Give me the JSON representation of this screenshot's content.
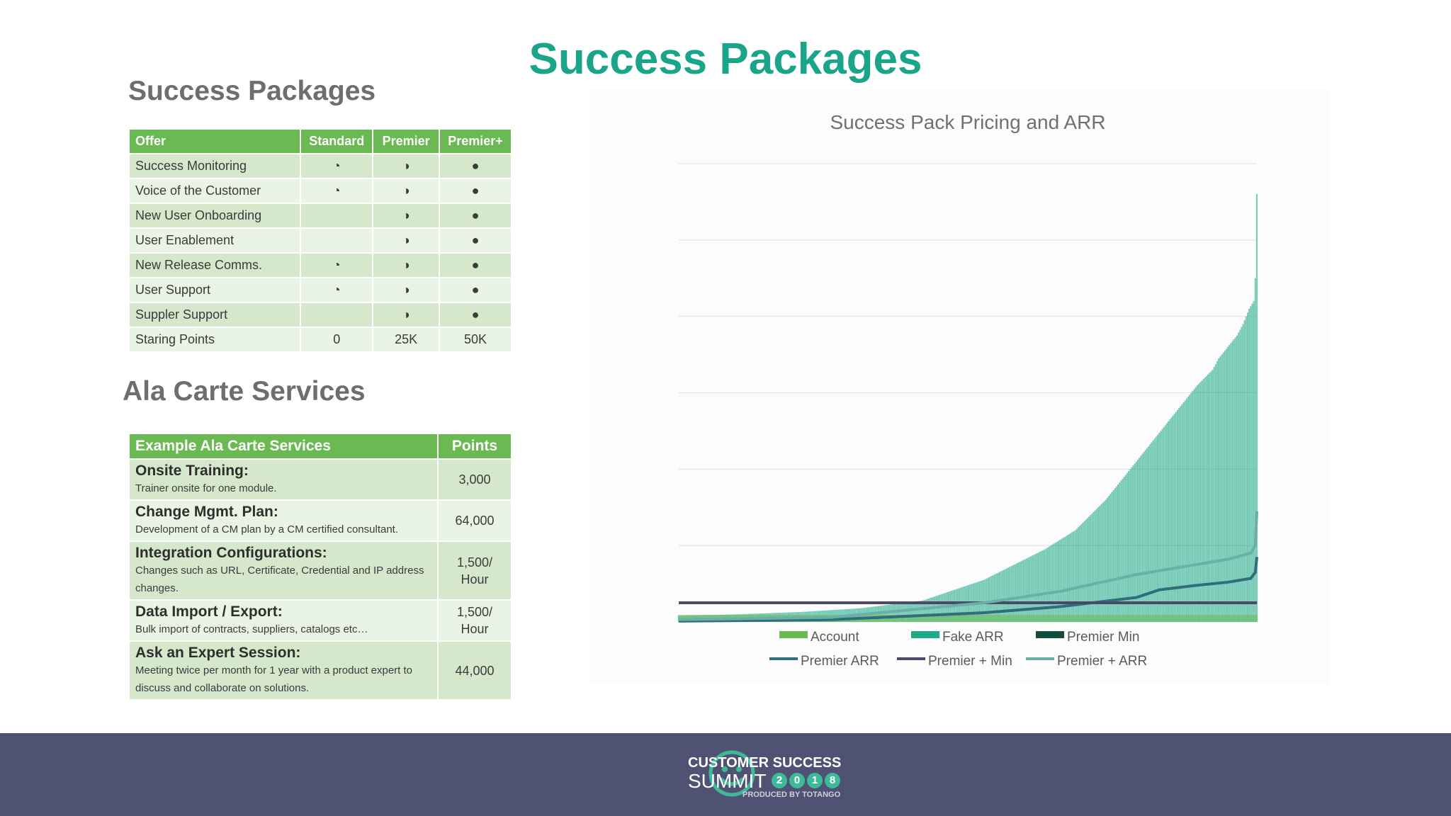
{
  "slide": {
    "title": "Success Packages"
  },
  "packages": {
    "heading": "Success Packages",
    "columns": [
      "Offer",
      "Standard",
      "Premier",
      "Premier+"
    ],
    "rows": [
      {
        "offer": "Success Monitoring",
        "standard": "◔",
        "premier": "◑",
        "premier_plus": "●"
      },
      {
        "offer": "Voice of the Customer",
        "standard": "◔",
        "premier": "◑",
        "premier_plus": "●"
      },
      {
        "offer": "New User Onboarding",
        "standard": "",
        "premier": "◑",
        "premier_plus": "●"
      },
      {
        "offer": "User Enablement",
        "standard": "",
        "premier": "◑",
        "premier_plus": "●"
      },
      {
        "offer": "New Release Comms.",
        "standard": "◔",
        "premier": "◑",
        "premier_plus": "●"
      },
      {
        "offer": "User Support",
        "standard": "◔",
        "premier": "◑",
        "premier_plus": "●"
      },
      {
        "offer": "Suppler Support",
        "standard": "",
        "premier": "◑",
        "premier_plus": "●"
      },
      {
        "offer": "Staring Points",
        "standard": "0",
        "premier": "25K",
        "premier_plus": "50K"
      }
    ]
  },
  "ala_carte": {
    "heading": "Ala Carte Services",
    "columns": [
      "Example Ala Carte Services",
      "Points"
    ],
    "rows": [
      {
        "name": "Onsite Training:",
        "desc": "Trainer onsite for one module.",
        "points": "3,000"
      },
      {
        "name": "Change Mgmt. Plan:",
        "desc": "Development of a CM plan by a CM certified consultant.",
        "points": "64,000"
      },
      {
        "name": "Integration Configurations:",
        "desc": "Changes such as URL, Certificate, Credential and IP address changes.",
        "points": "1,500/ Hour"
      },
      {
        "name": "Data Import / Export:",
        "desc": "Bulk import of contracts, suppliers, catalogs etc…",
        "points": "1,500/ Hour"
      },
      {
        "name": "Ask an Expert Session:",
        "desc": "Meeting twice per month for 1 year with a product expert to discuss and collaborate on solutions.",
        "points": "44,000"
      }
    ]
  },
  "chart_data": {
    "type": "bar",
    "title": "Success Pack Pricing and ARR",
    "xlabel": "",
    "ylabel": "",
    "ylim": [
      0,
      6
    ],
    "grid": true,
    "legend_position": "bottom",
    "n_accounts": 380,
    "series": [
      {
        "name": "Account",
        "kind": "bar",
        "color": "#6bb952"
      },
      {
        "name": "Fake ARR",
        "kind": "bar",
        "color": "#1eaa86",
        "x": [
          0,
          40,
          80,
          120,
          160,
          200,
          240,
          260,
          280,
          300,
          320,
          330,
          340,
          350,
          354,
          360,
          366,
          370,
          374,
          377,
          378,
          379
        ],
        "values": [
          0.08,
          0.1,
          0.13,
          0.18,
          0.28,
          0.55,
          0.95,
          1.2,
          1.6,
          2.1,
          2.6,
          2.85,
          3.1,
          3.3,
          3.45,
          3.6,
          3.75,
          3.9,
          4.1,
          4.2,
          4.5,
          5.6
        ]
      },
      {
        "name": "Premier Min",
        "kind": "bar",
        "color": "#0e4d3f",
        "x": [
          0,
          379
        ],
        "values": [
          0.0,
          0.0
        ]
      },
      {
        "name": "Premier ARR",
        "kind": "line",
        "color": "#2f6e7a",
        "x": [
          0,
          100,
          200,
          250,
          300,
          315,
          340,
          360,
          375,
          378,
          379
        ],
        "values": [
          0.01,
          0.03,
          0.12,
          0.2,
          0.32,
          0.42,
          0.48,
          0.52,
          0.57,
          0.65,
          0.85
        ]
      },
      {
        "name": "Premier + Min",
        "kind": "line",
        "color": "#4e4868",
        "x": [
          0,
          379
        ],
        "values": [
          0.25,
          0.25
        ]
      },
      {
        "name": "Premier + ARR",
        "kind": "line",
        "color": "#6bb0a8",
        "x": [
          0,
          100,
          200,
          250,
          300,
          330,
          360,
          375,
          378,
          379
        ],
        "values": [
          0.03,
          0.06,
          0.25,
          0.4,
          0.62,
          0.72,
          0.82,
          0.9,
          1.0,
          1.45
        ]
      }
    ]
  },
  "footer": {
    "brand_line1": "CUSTOMER SUCCESS",
    "brand_line2": "SUMMIT",
    "year_digits": [
      "2",
      "0",
      "1",
      "8"
    ],
    "produced_by": "PRODUCED BY TOTANGO",
    "background": "#4f5272",
    "accent": "#3dbb99"
  }
}
